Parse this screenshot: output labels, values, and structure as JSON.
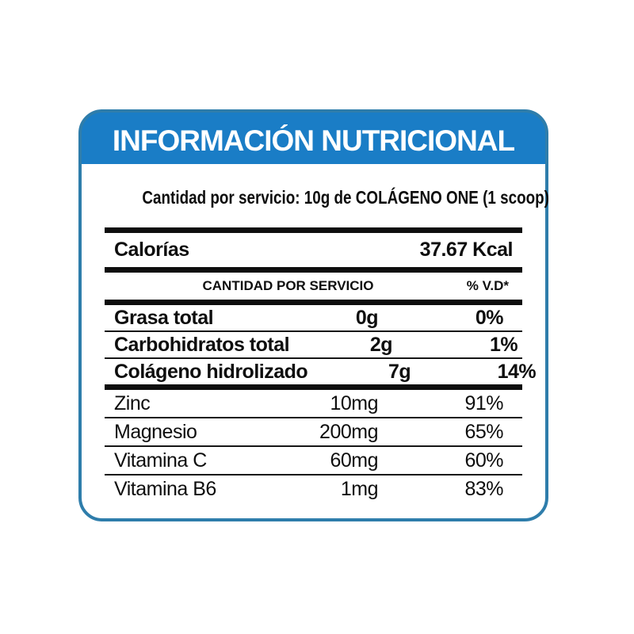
{
  "header": {
    "title": "INFORMACIÓN NUTRICIONAL"
  },
  "serving_line": "Cantidad por servicio: 10g de COLÁGENO ONE (1 scoop)",
  "calories": {
    "label": "Calorías",
    "value": "37.67 Kcal"
  },
  "table": {
    "col_headers": {
      "amount": "CANTIDAD POR SERVICIO",
      "dv": "% V.D*"
    },
    "macro_rows": [
      {
        "label": "Grasa total",
        "amount": "0g",
        "dv": "0%"
      },
      {
        "label": "Carbohidratos total",
        "amount": "2g",
        "dv": "1%"
      },
      {
        "label": "Colágeno hidrolizado",
        "amount": "7g",
        "dv": "14%"
      }
    ],
    "micro_rows": [
      {
        "label": "Zinc",
        "amount": "10mg",
        "dv": "91%"
      },
      {
        "label": "Magnesio",
        "amount": "200mg",
        "dv": "65%"
      },
      {
        "label": "Vitamina C",
        "amount": "60mg",
        "dv": "60%"
      },
      {
        "label": "Vitamina B6",
        "amount": "1mg",
        "dv": "83%"
      }
    ]
  },
  "colors": {
    "header_blue": "#1a7dc6",
    "border_blue": "#2e7dab",
    "divider_black": "#0e0e0e",
    "text": "#0e0e0e",
    "title_text": "#ffffff"
  }
}
